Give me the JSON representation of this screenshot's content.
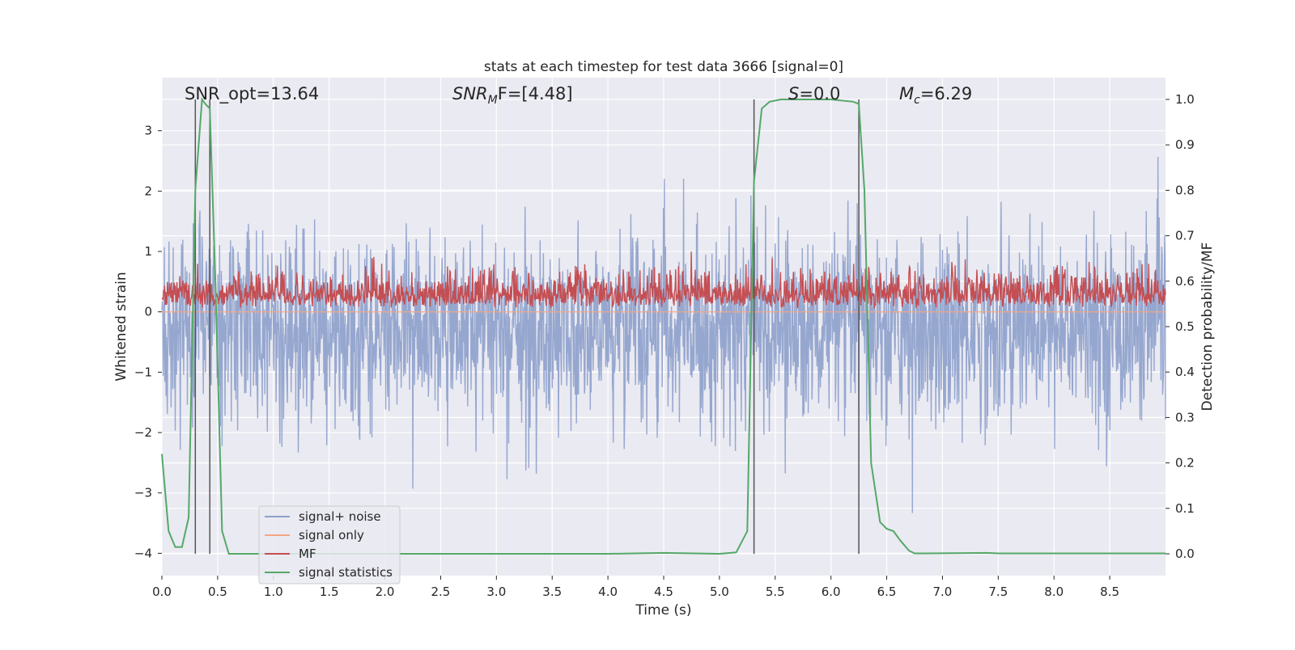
{
  "chart_data": {
    "type": "line",
    "title": "stats at each timestep for test data 3666 [signal=0]",
    "xlabel": "Time (s)",
    "ylabel_left": "Whitened strain",
    "ylabel_right": "Detection probability/MF",
    "xlim": [
      0.0,
      9.0
    ],
    "ylim_left": [
      -4.37,
      3.88
    ],
    "ylim_right": [
      -0.048,
      1.048
    ],
    "x_ticks": [
      "0.0",
      "0.5",
      "1.0",
      "1.5",
      "2.0",
      "2.5",
      "3.0",
      "3.5",
      "4.0",
      "4.5",
      "5.0",
      "5.5",
      "6.0",
      "6.5",
      "7.0",
      "7.5",
      "8.0",
      "8.5"
    ],
    "y_ticks_left": [
      "−4",
      "−3",
      "−2",
      "−1",
      "0",
      "1",
      "2",
      "3"
    ],
    "y_ticks_right": [
      "0.0",
      "0.1",
      "0.2",
      "0.3",
      "0.4",
      "0.5",
      "0.6",
      "0.7",
      "0.8",
      "0.9",
      "1.0"
    ],
    "grid": true,
    "legend_position": "lower-left",
    "annotations": {
      "snr_opt": "SNR_opt=13.64",
      "snr_mf_italic": "SNR",
      "snr_mf_sub": "M",
      "snr_mf_rest": "F=[4.48]",
      "s_italic": "S",
      "s_rest": "=0.0",
      "mc_italic": "M",
      "mc_sub": "c",
      "mc_rest": "=6.29"
    },
    "vertical_markers_s": [
      0.3,
      0.43,
      5.31,
      6.25
    ],
    "series": [
      {
        "name": "signal+ noise",
        "color": "#8da0cb",
        "axis": "left",
        "description_values": {
          "envelope_mean": -0.3,
          "envelope_std": 0.75,
          "max": 3.5,
          "min": -4.0
        }
      },
      {
        "name": "signal only",
        "color": "#f4a582",
        "axis": "left",
        "values": []
      },
      {
        "name": "MF",
        "color": "#c44e52",
        "axis": "left",
        "description_values": {
          "baseline": 0.05,
          "typical_max": 0.75,
          "max": 1.0
        }
      },
      {
        "name": "signal statistics",
        "color": "#55a868",
        "axis": "right",
        "x": [
          0.0,
          0.06,
          0.12,
          0.18,
          0.24,
          0.3,
          0.36,
          0.39,
          0.43,
          0.48,
          0.54,
          0.6,
          1.0,
          2.0,
          3.0,
          4.0,
          4.5,
          5.0,
          5.15,
          5.25,
          5.31,
          5.38,
          5.45,
          5.55,
          5.7,
          6.0,
          6.2,
          6.25,
          6.3,
          6.36,
          6.44,
          6.5,
          6.56,
          6.62,
          6.7,
          6.75,
          6.85,
          7.4,
          7.5,
          9.0
        ],
        "y": [
          0.22,
          0.05,
          0.015,
          0.015,
          0.08,
          0.8,
          1.0,
          0.99,
          0.98,
          0.6,
          0.05,
          0.0,
          0.0,
          0.0,
          0.0,
          0.0,
          0.002,
          0.0,
          0.003,
          0.05,
          0.82,
          0.98,
          0.995,
          1.0,
          1.0,
          1.0,
          0.995,
          0.99,
          0.8,
          0.2,
          0.07,
          0.055,
          0.05,
          0.03,
          0.007,
          0.001,
          0.001,
          0.002,
          0.001,
          0.001
        ]
      }
    ]
  }
}
